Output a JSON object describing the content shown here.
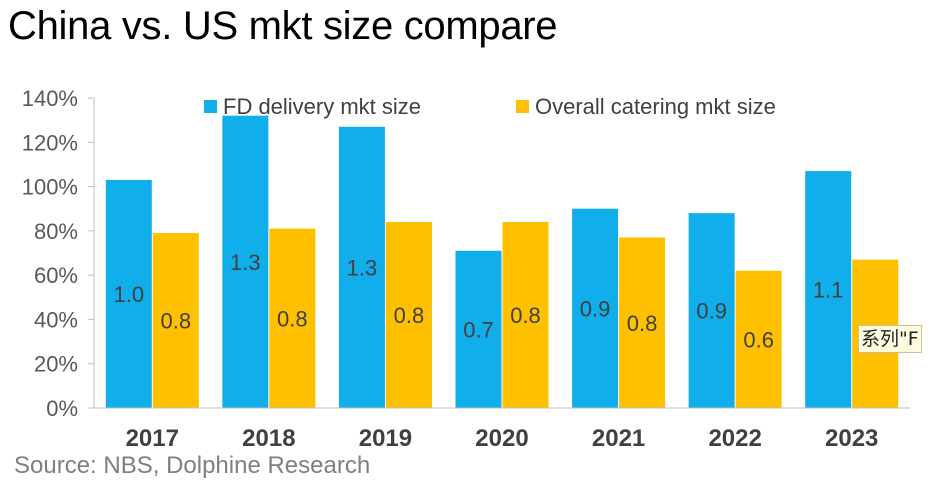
{
  "title": "China vs. US mkt size compare",
  "source": "Source: NBS, Dolphine Research",
  "tooltip": "系列\"F",
  "chart_data": {
    "type": "bar",
    "categories": [
      "2017",
      "2018",
      "2019",
      "2020",
      "2021",
      "2022",
      "2023"
    ],
    "series": [
      {
        "name": "FD delivery mkt size",
        "color": "#10AEEB",
        "values": [
          1.03,
          1.32,
          1.27,
          0.71,
          0.9,
          0.88,
          1.07
        ],
        "labels": [
          "1.0",
          "1.3",
          "1.3",
          "0.7",
          "0.9",
          "0.9",
          "1.1"
        ]
      },
      {
        "name": "Overall catering mkt size",
        "color": "#FFC000",
        "values": [
          0.79,
          0.81,
          0.84,
          0.84,
          0.77,
          0.62,
          0.67
        ],
        "labels": [
          "0.8",
          "0.8",
          "0.8",
          "0.8",
          "0.8",
          "0.6",
          "0.7"
        ]
      }
    ],
    "yticks": [
      "0%",
      "20%",
      "40%",
      "60%",
      "80%",
      "100%",
      "120%",
      "140%"
    ],
    "ylim": [
      0,
      1.4
    ],
    "xlabel": "",
    "ylabel": "",
    "legend": "top",
    "grid": false
  }
}
